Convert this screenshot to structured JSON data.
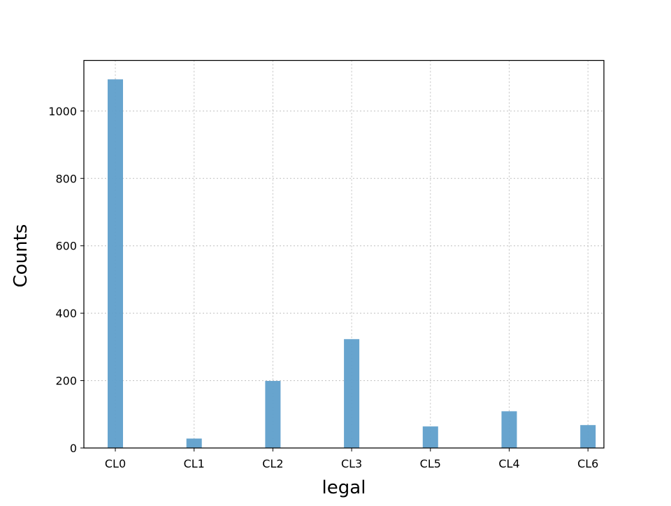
{
  "chart_data": {
    "type": "bar",
    "title": "",
    "xlabel": "legal",
    "ylabel": "Counts",
    "categories": [
      "CL0",
      "CL1",
      "CL2",
      "CL3",
      "CL5",
      "CL4",
      "CL6"
    ],
    "values": [
      1094,
      28,
      199,
      323,
      64,
      109,
      68
    ],
    "ylim": [
      0,
      1150
    ],
    "yticks": [
      0,
      200,
      400,
      600,
      800,
      1000
    ],
    "grid": true,
    "bar_color": "#5f9fcb",
    "bar_alpha": 0.95
  }
}
